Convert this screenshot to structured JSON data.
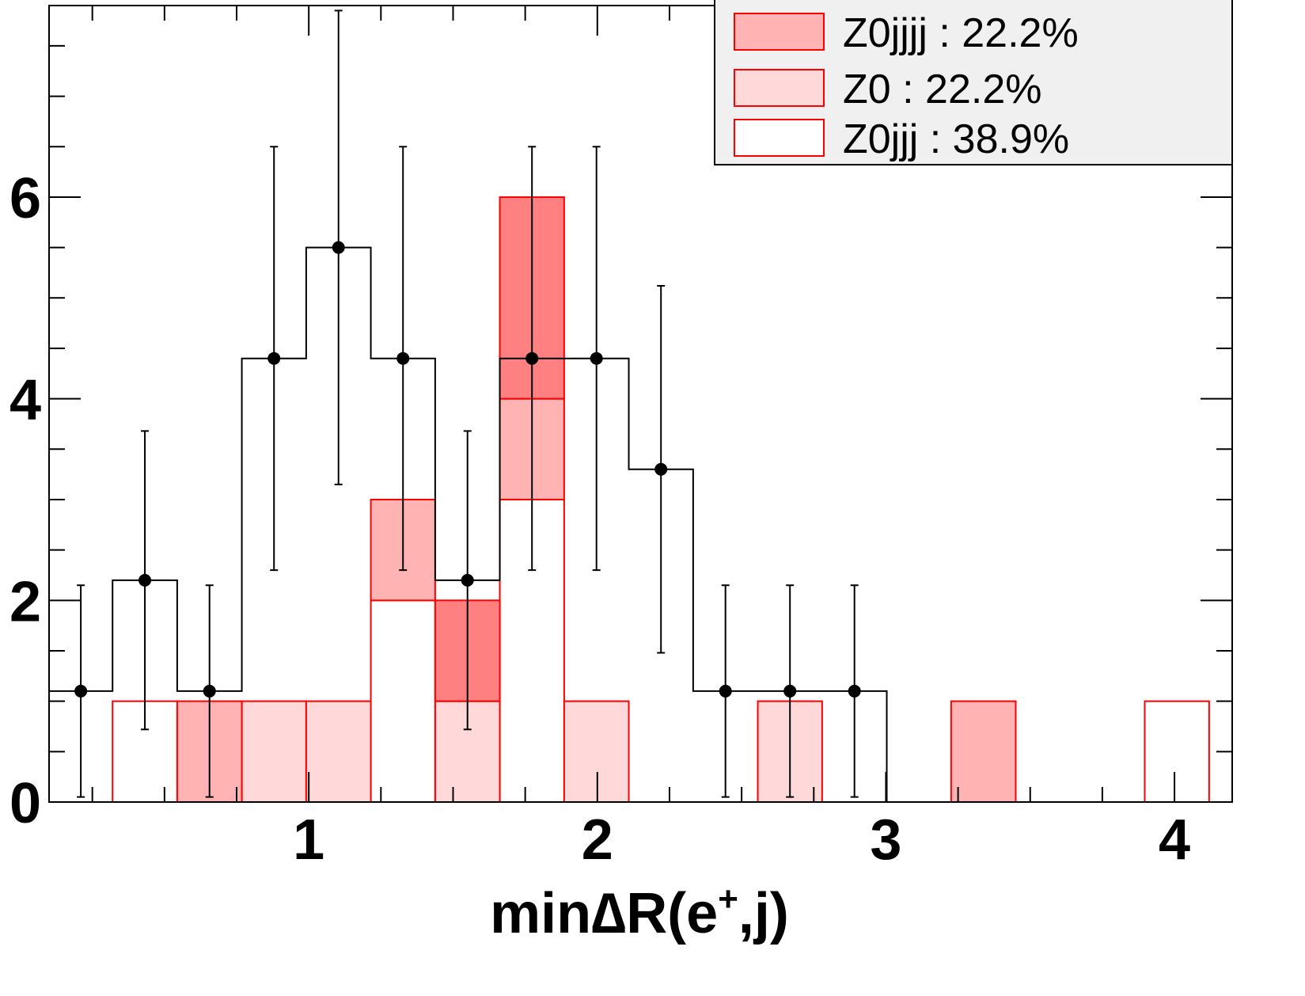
{
  "chart_data": {
    "type": "histogram",
    "xlabel": {
      "prefix": "min",
      "symbol": "∆",
      "main": "R(e",
      "sup": "+",
      "suffix": ",j)"
    },
    "ylabel": "",
    "xlim": [
      0.1,
      4.2
    ],
    "ylim": [
      0,
      7.9
    ],
    "x_major_ticks": [
      1,
      2,
      3,
      4
    ],
    "x_minor_step": 0.25,
    "y_major_ticks": [
      0,
      2,
      4,
      6
    ],
    "y_minor_step": 0.5,
    "bin_edges": [
      0.1,
      0.32,
      0.544,
      0.768,
      0.991,
      1.215,
      1.438,
      1.662,
      1.885,
      2.109,
      2.332,
      2.556,
      2.779,
      3.003,
      3.226,
      3.45,
      3.673,
      3.897,
      4.12
    ],
    "stack_series": [
      {
        "name": "Z0jjj : 38.9%",
        "color": "#ffffff",
        "values": [
          0,
          1,
          0,
          0,
          0,
          2,
          0,
          3,
          0,
          0,
          0,
          0,
          0,
          0,
          0,
          0,
          0,
          1
        ]
      },
      {
        "name": "Z0 : 22.2%",
        "color": "#ffd9d9",
        "values": [
          0,
          0,
          0,
          1,
          1,
          0,
          1,
          0,
          1,
          0,
          0,
          1,
          0,
          0,
          0,
          0,
          0,
          0
        ]
      },
      {
        "name": "Z0jjjj : 22.2%",
        "color": "#ffb3b3",
        "values": [
          0,
          0,
          1,
          0,
          0,
          1,
          0,
          1,
          0,
          0,
          0,
          0,
          0,
          0,
          1,
          0,
          0,
          0
        ]
      },
      {
        "name": "",
        "color": "#ff8080",
        "values": [
          0,
          0,
          0,
          0,
          0,
          0,
          1,
          2,
          0,
          0,
          0,
          0,
          0,
          0,
          0,
          0,
          0,
          0
        ]
      }
    ],
    "data_series": {
      "values": [
        1.1,
        2.2,
        1.1,
        4.4,
        5.5,
        4.4,
        2.2,
        4.4,
        4.4,
        3.3,
        1.1,
        1.1,
        1.1,
        0,
        0,
        0,
        0,
        0
      ],
      "errors": [
        1.05,
        1.48,
        1.05,
        2.1,
        2.35,
        2.1,
        1.48,
        2.1,
        2.1,
        1.82,
        1.05,
        1.05,
        1.05,
        0,
        0,
        0,
        0,
        0
      ]
    },
    "legend": {
      "placement": "top-right",
      "entries": [
        {
          "label": "Z0jjjj : 22.2%",
          "color": "#ffb3b3"
        },
        {
          "label": "Z0 : 22.2%",
          "color": "#ffd9d9"
        },
        {
          "label": "Z0jjj : 38.9%",
          "color": "#ffffff"
        }
      ]
    },
    "grid": false
  }
}
